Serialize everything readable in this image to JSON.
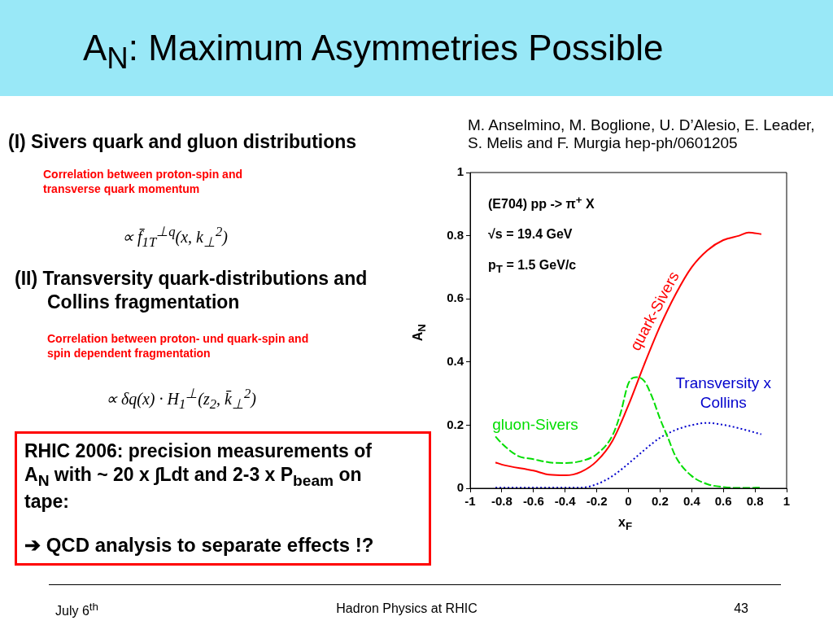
{
  "chart_data": {
    "type": "line",
    "title": "A$_{N}$: Maximum Asymmetries Possible",
    "xlabel": "x$_{F}$",
    "ylabel": "A$_{N}$",
    "xlim": [
      -1,
      1
    ],
    "xticks": [
      -1,
      -0.8,
      -0.6,
      -0.4,
      -0.2,
      0,
      0.2,
      0.4,
      0.6,
      0.8,
      1
    ],
    "ylim": [
      0,
      1
    ],
    "yticks": [
      0,
      0.2,
      0.4,
      0.6,
      0.8,
      1
    ],
    "grid": false,
    "legend": false,
    "marker": "none",
    "series": [
      {
        "name": "quark-Sivers",
        "color": "#ff0000",
        "line_style": "solid",
        "x": [
          -0.84,
          -0.8,
          -0.6,
          -0.5,
          -0.4,
          -0.3,
          -0.2,
          -0.1,
          0,
          0.1,
          0.2,
          0.3,
          0.4,
          0.5,
          0.6,
          0.7,
          0.76,
          0.84
        ],
        "values": [
          0.082,
          0.075,
          0.056,
          0.043,
          0.041,
          0.052,
          0.086,
          0.151,
          0.263,
          0.392,
          0.513,
          0.616,
          0.7,
          0.754,
          0.786,
          0.8,
          0.81,
          0.805
        ]
      },
      {
        "name": "gluon-Sivers",
        "color": "#00dd00",
        "line_style": "dashed",
        "x": [
          -0.84,
          -0.8,
          -0.7,
          -0.6,
          -0.5,
          -0.4,
          -0.3,
          -0.2,
          -0.1,
          -0.05,
          0,
          0.05,
          0.1,
          0.15,
          0.2,
          0.25,
          0.3,
          0.4,
          0.5,
          0.6,
          0.7,
          0.84
        ],
        "values": [
          0.164,
          0.142,
          0.103,
          0.092,
          0.082,
          0.08,
          0.086,
          0.108,
          0.168,
          0.237,
          0.332,
          0.352,
          0.34,
          0.289,
          0.22,
          0.16,
          0.099,
          0.039,
          0.013,
          0.004,
          0.001,
          0.002
        ]
      },
      {
        "name": "Transversity x Collins",
        "color": "#0000cc",
        "line_style": "dotted",
        "x": [
          -0.84,
          -0.6,
          -0.4,
          -0.3,
          -0.2,
          -0.1,
          0,
          0.1,
          0.2,
          0.3,
          0.4,
          0.5,
          0.6,
          0.7,
          0.84
        ],
        "values": [
          0.002,
          0.002,
          0.002,
          0.002,
          0.013,
          0.039,
          0.078,
          0.121,
          0.16,
          0.185,
          0.2,
          0.207,
          0.201,
          0.19,
          0.171
        ]
      }
    ],
    "annotations": [
      "M. Anselmino, M. Boglione, U. D’Alesio, E. Leader, S. Melis and F. Murgia hep-ph/0601205",
      "(I)  Sivers quark and gluon distributions",
      "Correlation between proton-spin and transverse quark momentum",
      "∝ f̄$_{1T}$$^{⊥q}$(x, k$_{⊥}$$^{2}$)",
      "(II) Transversity quark-distributions and Collins fragmentation",
      "Correlation between proton- und quark-spin and spin dependent fragmentation",
      "∝ δq(x) · H$_{1}$$^{⊥}$(z$_{2}$, k̄$_{⊥}$$^{2}$)",
      "RHIC 2006: precision measurements of A$_{N}$ with ~ 20 x ∫Ldt and 2-3 x P$_{beam}$ on tape:",
      "➔ QCD analysis to separate effects !?",
      "(E704)  pp -> π$^{+}$ X",
      "√s = 19.4 GeV",
      "p$_{T}$ = 1.5 GeV/c",
      "July 6$^{th}$",
      "Hadron Physics at RHIC",
      "43"
    ]
  }
}
